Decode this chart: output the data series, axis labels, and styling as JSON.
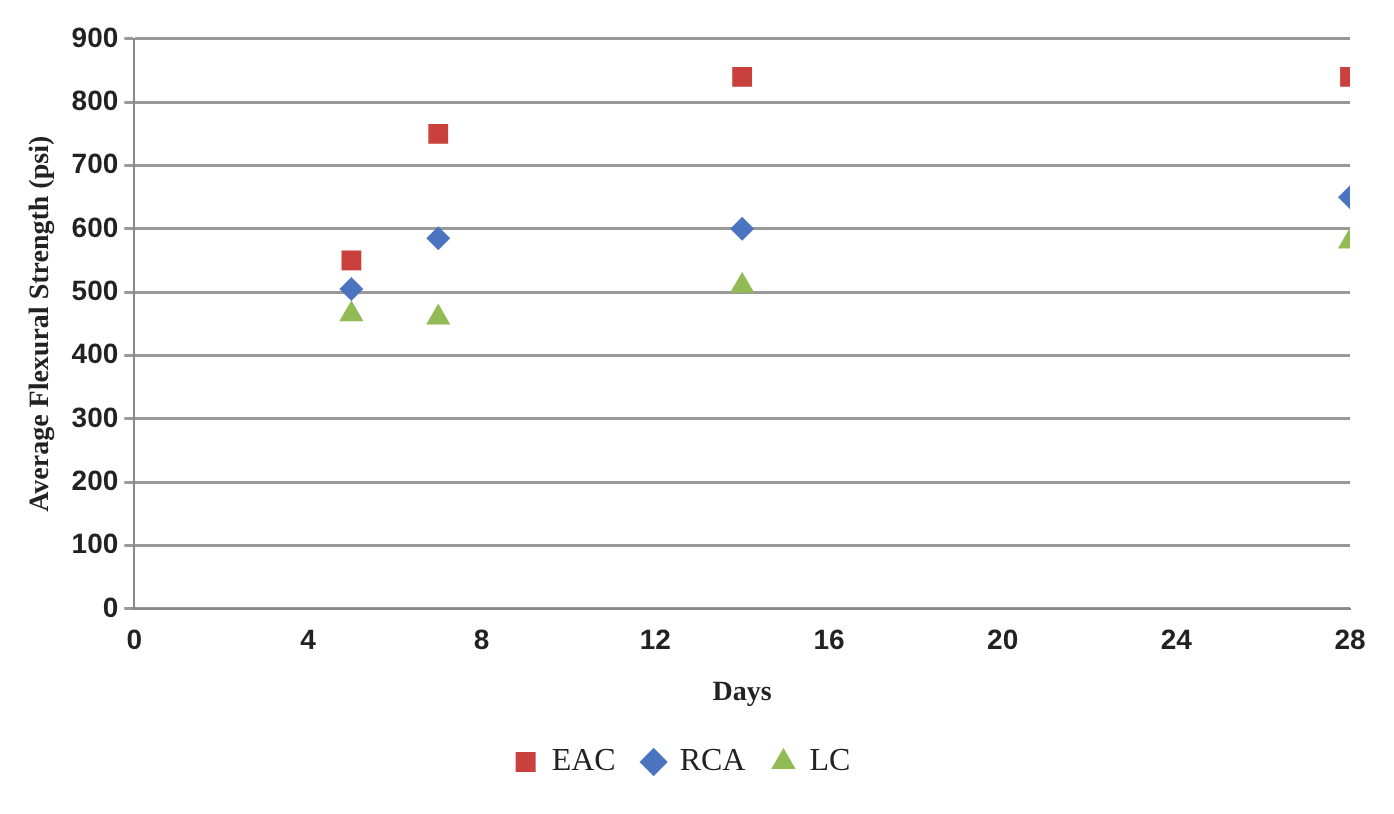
{
  "chart_data": {
    "type": "scatter",
    "xlabel": "Days",
    "ylabel": "Average Flexural Strength (psi)",
    "x": [
      5,
      7,
      14,
      28
    ],
    "series": [
      {
        "name": "EAC",
        "color": "#c9403c",
        "marker": "square",
        "values": [
          550,
          750,
          840,
          840
        ]
      },
      {
        "name": "RCA",
        "color": "#4a74c0",
        "marker": "diamond",
        "values": [
          505,
          585,
          600,
          650
        ]
      },
      {
        "name": "LC",
        "color": "#92bb55",
        "marker": "triangle",
        "values": [
          465,
          460,
          510,
          580
        ]
      }
    ],
    "xlim": [
      0,
      28
    ],
    "xticks": [
      0,
      4,
      8,
      12,
      16,
      20,
      24,
      28
    ],
    "ylim": [
      0,
      900
    ],
    "yticks": [
      0,
      100,
      200,
      300,
      400,
      500,
      600,
      700,
      800,
      900
    ],
    "grid": "y",
    "legend": "bottom"
  }
}
